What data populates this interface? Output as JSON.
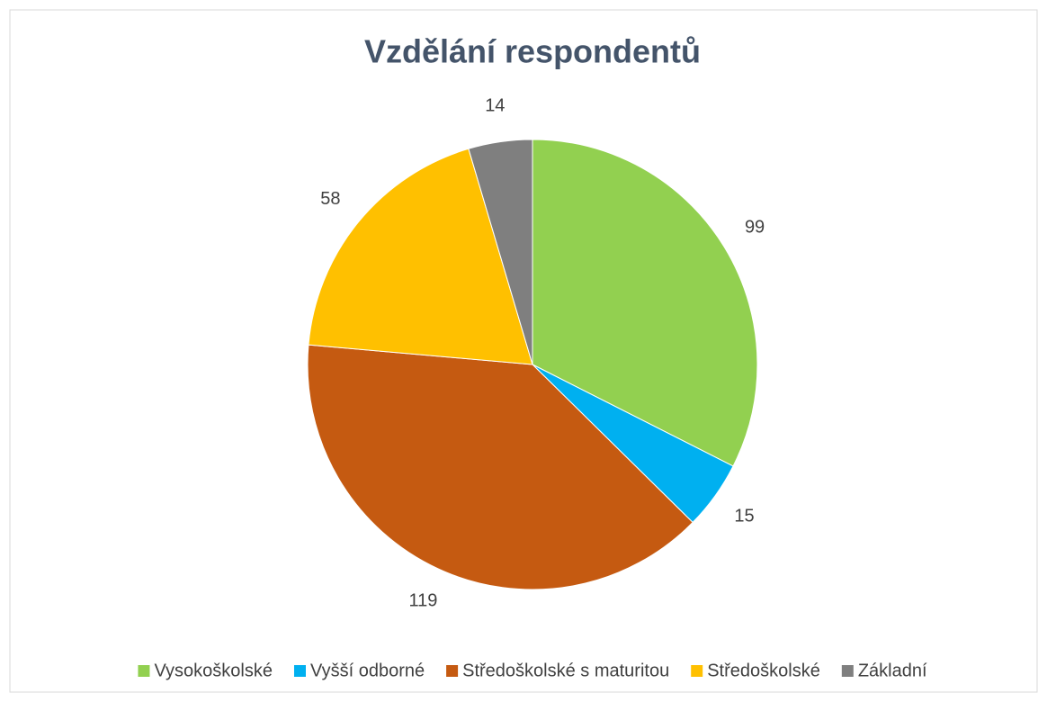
{
  "chart_data": {
    "type": "pie",
    "title": "Vzdělání respondentů",
    "categories": [
      "Vysokoškolské",
      "Vyšší odborné",
      "Středoškolské s maturitou",
      "Středoškolské",
      "Základní"
    ],
    "values": [
      99,
      15,
      119,
      58,
      14
    ],
    "colors": [
      "#92d050",
      "#00b0f0",
      "#c55a11",
      "#ffc000",
      "#7f7f7f"
    ],
    "legend": "bottom"
  }
}
